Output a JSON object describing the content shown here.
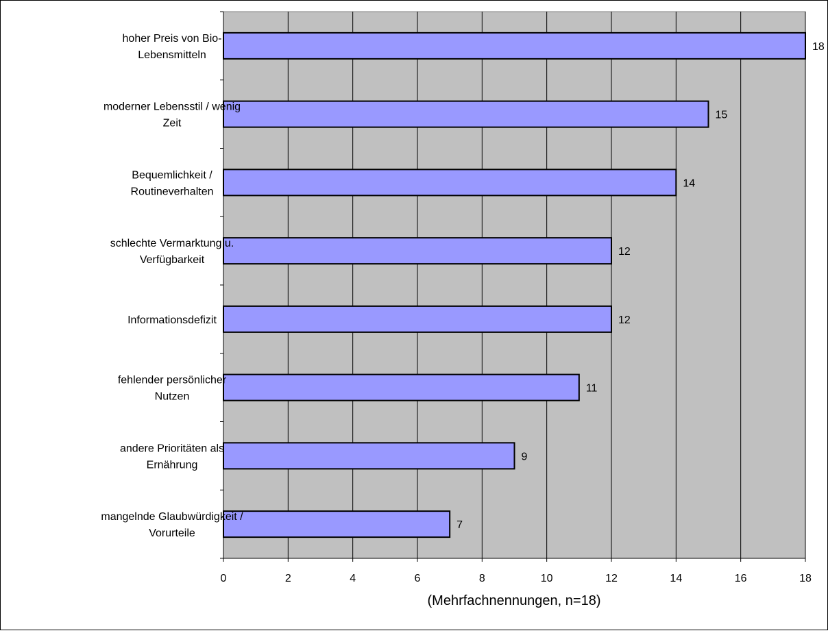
{
  "chart_data": {
    "type": "bar",
    "orientation": "horizontal",
    "categories": [
      [
        "hoher Preis von Bio-",
        "Lebensmitteln"
      ],
      [
        "moderner Lebensstil / wenig",
        "Zeit"
      ],
      [
        "Bequemlichkeit /",
        "Routineverhalten"
      ],
      [
        "schlechte Vermarktung u.",
        "Verfügbarkeit"
      ],
      [
        "Informationsdefizit"
      ],
      [
        "fehlender persönlicher",
        "Nutzen"
      ],
      [
        "andere Prioritäten als",
        "Ernährung"
      ],
      [
        "mangelnde Glaubwürdigkeit /",
        "Vorurteile"
      ]
    ],
    "values": [
      18,
      15,
      14,
      12,
      12,
      11,
      9,
      7
    ],
    "data_labels": [
      "18",
      "15",
      "14",
      "12",
      "12",
      "11",
      "9",
      "7"
    ],
    "xlim": [
      0,
      18
    ],
    "x_ticks": [
      0,
      2,
      4,
      6,
      8,
      10,
      12,
      14,
      16,
      18
    ],
    "xlabel": "(Mehrfachnennungen, n=18)",
    "title": "",
    "grid": "vertical",
    "legend": "none",
    "colors": {
      "bar_fill": "#9999ff",
      "plot_background": "#c0c0c0",
      "gridline": "#000000",
      "bar_stroke": "#000000"
    }
  }
}
